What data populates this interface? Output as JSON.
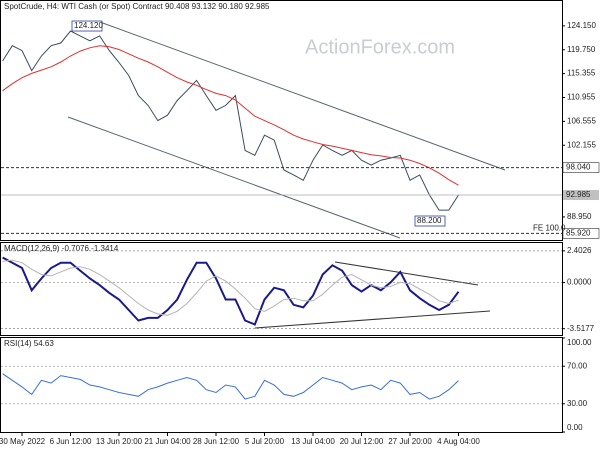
{
  "watermark": "ActionForex.com",
  "chart_data": [
    {
      "type": "line",
      "title": "SpotCrude, H4:  WTI Cash (or Spot) Contract  90.408 93.132 90.180 92.985",
      "categories": [
        null,
        null,
        "30 May 2022",
        null,
        null,
        null,
        null,
        "6 Jun 12:00",
        null,
        null,
        null,
        null,
        "13 Jun 20:00",
        null,
        null,
        null,
        null,
        "21 Jun 04:00",
        null,
        null,
        null,
        null,
        "28 Jun 12:00",
        null,
        null,
        null,
        null,
        "5 Jul 20:00",
        null,
        null,
        null,
        null,
        "13 Jul 04:00",
        null,
        null,
        null,
        null,
        "20 Jul 12:00",
        null,
        null,
        null,
        null,
        "27 Jul 20:00",
        null,
        null,
        null,
        null,
        "4 Aug 04:00"
      ],
      "series": [
        {
          "color": "#3c4c5c",
          "values": [
            117.7,
            120.5,
            119.6,
            115.9,
            118.6,
            120.5,
            121.0,
            123.2,
            122.3,
            121.4,
            122.3,
            119.6,
            117.4,
            115.0,
            111.3,
            109.5,
            106.7,
            107.7,
            110.4,
            112.2,
            114.1,
            111.3,
            108.6,
            109.5,
            111.3,
            101.2,
            100.3,
            104.0,
            103.1,
            97.6,
            96.7,
            95.7,
            99.4,
            102.2,
            101.2,
            100.3,
            101.2,
            99.4,
            98.5,
            99.4,
            99.8,
            100.3,
            95.7,
            96.7,
            93.0,
            90.2,
            90.2,
            92.985
          ]
        },
        {
          "color": "#e03030",
          "values": [
            112.2,
            113.5,
            114.6,
            115.4,
            116.0,
            116.6,
            117.5,
            118.6,
            119.5,
            120.1,
            120.5,
            120.3,
            119.8,
            119.0,
            118.2,
            117.5,
            116.6,
            115.6,
            114.6,
            113.8,
            113.2,
            112.4,
            111.7,
            111.3,
            110.5,
            109.0,
            107.5,
            106.7,
            105.9,
            105.0,
            104.0,
            103.3,
            102.8,
            102.3,
            102.0,
            101.6,
            101.2,
            100.8,
            100.4,
            100.2,
            99.9,
            99.8,
            99.4,
            98.8,
            98.0,
            97.0,
            95.8,
            94.8
          ]
        }
      ],
      "ylim": [
        84.7,
        128.73
      ],
      "yticks": [
        {
          "value": 124.15,
          "label": "124.150"
        },
        {
          "value": 119.75,
          "label": "119.750"
        },
        {
          "value": 115.355,
          "label": "115.355"
        },
        {
          "value": 110.955,
          "label": "110.955"
        },
        {
          "value": 106.555,
          "label": "106.555"
        },
        {
          "value": 102.155,
          "label": "102.155"
        },
        {
          "value": 88.95,
          "label": "88.950"
        }
      ],
      "levels": [
        {
          "value": 98.04,
          "label": "98.040"
        },
        {
          "value": 85.92,
          "label": "85.920"
        }
      ],
      "last_price": {
        "value": 92.985,
        "label": "92.985"
      },
      "annotations": [
        {
          "value": 124.12,
          "label": "124.120"
        },
        {
          "value": 88.2,
          "label": "88.200"
        }
      ],
      "fe_label": "FE 100.0"
    },
    {
      "type": "line",
      "title": "MACD(12,26,9) -0.7076 -1.3414",
      "series": [
        {
          "color": "#1a1a8c",
          "values": [
            1.9,
            1.5,
            1.1,
            -0.6,
            0.3,
            1.1,
            1.5,
            1.5,
            0.9,
            0.3,
            -0.2,
            -0.8,
            -1.3,
            -2.1,
            -2.9,
            -2.7,
            -2.7,
            -2.1,
            -1.3,
            0.2,
            1.5,
            1.5,
            0.3,
            -1.3,
            -1.3,
            -2.9,
            -3.2,
            -1.3,
            -0.4,
            -0.6,
            -1.7,
            -1.9,
            -1.0,
            0.6,
            1.3,
            0.9,
            -0.2,
            -0.7,
            -0.2,
            -0.6,
            0.0,
            0.8,
            -0.6,
            -1.2,
            -1.7,
            -2.1,
            -1.7,
            -0.7076
          ]
        },
        {
          "color": "#b4b4b4",
          "values": [
            1.6,
            1.7,
            1.5,
            1.0,
            0.6,
            0.5,
            0.8,
            1.1,
            1.2,
            1.0,
            0.6,
            0.1,
            -0.4,
            -1.0,
            -1.6,
            -2.1,
            -2.4,
            -2.5,
            -2.2,
            -1.6,
            -0.8,
            0.1,
            0.5,
            0.1,
            -0.5,
            -1.2,
            -2.0,
            -2.2,
            -1.8,
            -1.3,
            -1.2,
            -1.4,
            -1.4,
            -0.9,
            -0.2,
            0.4,
            0.6,
            0.2,
            -0.2,
            -0.4,
            -0.3,
            0.0,
            -0.1,
            -0.5,
            -0.9,
            -1.4,
            -1.6,
            -1.3414
          ]
        }
      ],
      "ylim": [
        -4.0,
        3.0
      ],
      "yticks": [
        {
          "value": 2.4026,
          "label": "2.4026"
        },
        {
          "value": 0,
          "label": "0.0000"
        },
        {
          "value": -3.5177,
          "label": "-3.5177"
        }
      ]
    },
    {
      "type": "line",
      "title": "RSI(14) 54.63",
      "series": [
        {
          "color": "#3a6fd8",
          "values": [
            62,
            55,
            48,
            40,
            55,
            52,
            60,
            58,
            56,
            50,
            48,
            45,
            42,
            40,
            38,
            45,
            48,
            52,
            55,
            58,
            55,
            45,
            42,
            50,
            48,
            35,
            38,
            55,
            50,
            40,
            38,
            42,
            50,
            58,
            55,
            52,
            45,
            48,
            50,
            45,
            55,
            52,
            40,
            42,
            35,
            38,
            45,
            54.63
          ]
        }
      ],
      "ylim": [
        0,
        100
      ],
      "yticks": [
        {
          "value": 100,
          "label": "100.00"
        },
        {
          "value": 70,
          "label": "70.00"
        },
        {
          "value": 30,
          "label": "30.00"
        },
        {
          "value": 0,
          "label": "0.00"
        }
      ]
    }
  ]
}
